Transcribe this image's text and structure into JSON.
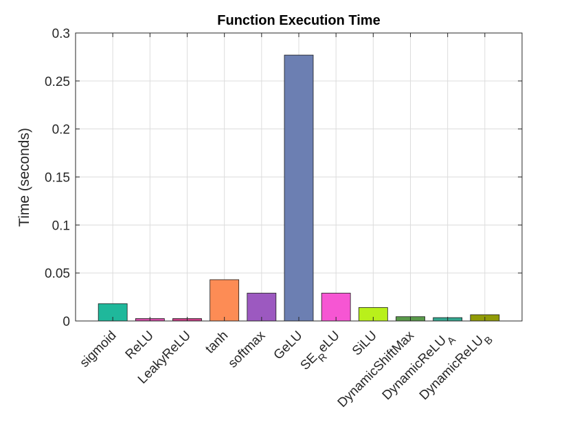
{
  "chart_data": {
    "type": "bar",
    "title": "Function Execution Time",
    "xlabel": "",
    "ylabel": "Time (seconds)",
    "ylim": [
      0,
      0.3
    ],
    "yticks": [
      0,
      0.05,
      0.1,
      0.15,
      0.2,
      0.25,
      0.3
    ],
    "ytick_labels": [
      "0",
      "0.05",
      "0.1",
      "0.15",
      "0.2",
      "0.25",
      "0.3"
    ],
    "grid": true,
    "categories": [
      {
        "base": "sigmoid",
        "sub": "",
        "tail": ""
      },
      {
        "base": "ReLU",
        "sub": "",
        "tail": ""
      },
      {
        "base": "LeakyReLU",
        "sub": "",
        "tail": ""
      },
      {
        "base": "tanh",
        "sub": "",
        "tail": ""
      },
      {
        "base": "softmax",
        "sub": "",
        "tail": ""
      },
      {
        "base": "GeLU",
        "sub": "",
        "tail": ""
      },
      {
        "base": "SE",
        "sub": "R",
        "tail": "eLU"
      },
      {
        "base": "SiLU",
        "sub": "",
        "tail": ""
      },
      {
        "base": "DynamicShiftMax",
        "sub": "",
        "tail": ""
      },
      {
        "base": "DynamicReLU",
        "sub": "A",
        "tail": ""
      },
      {
        "base": "DynamicReLU",
        "sub": "B",
        "tail": ""
      }
    ],
    "values": [
      0.018,
      0.0025,
      0.0025,
      0.043,
      0.029,
      0.277,
      0.029,
      0.014,
      0.0045,
      0.0035,
      0.0065
    ],
    "colors": [
      "#1fb89b",
      "#d24da6",
      "#c93f86",
      "#fd8c55",
      "#9c59c0",
      "#6c7fb2",
      "#f656d3",
      "#b9f01b",
      "#59994a",
      "#34a68f",
      "#919b06"
    ]
  }
}
